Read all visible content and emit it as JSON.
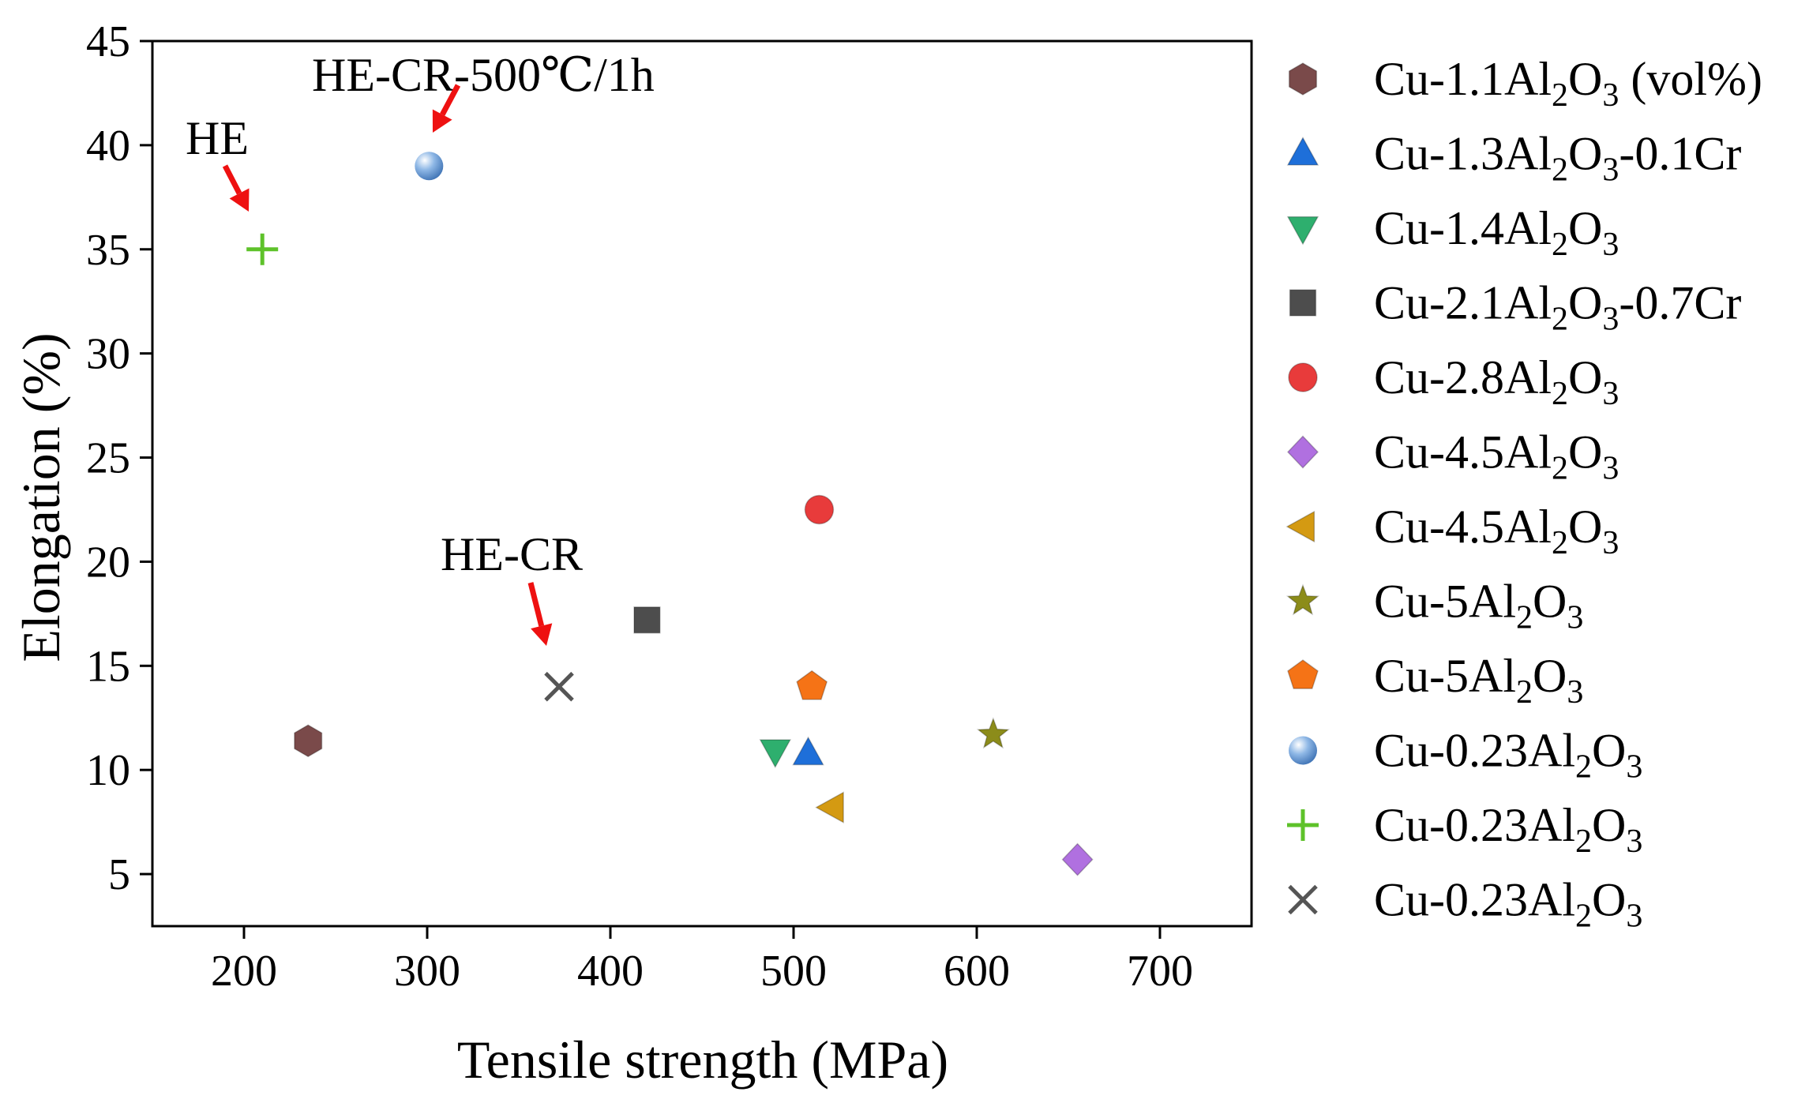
{
  "chart_data": {
    "type": "scatter",
    "title": "",
    "xlabel": "Tensile strength (MPa)",
    "ylabel": "Elongation (%)",
    "xlim": [
      150,
      750
    ],
    "ylim": [
      2.5,
      45
    ],
    "xticks": [
      200,
      300,
      400,
      500,
      600,
      700
    ],
    "yticks": [
      5,
      10,
      15,
      20,
      25,
      30,
      35,
      40,
      45
    ],
    "grid": false,
    "legend_position": "right",
    "series": [
      {
        "name": "Cu-1.1Al2O3 (vol%)",
        "label_base": "Cu-1.1Al",
        "label_mid": "O",
        "label_suffix": " (vol%)",
        "marker": "hexagon",
        "color": "#7a4a4a",
        "points": [
          {
            "x": 235,
            "y": 11.4
          }
        ]
      },
      {
        "name": "Cu-1.3Al2O3-0.1Cr",
        "label_base": "Cu-1.3Al",
        "label_mid": "O",
        "label_suffix": "-0.1Cr",
        "marker": "triangle-up",
        "color": "#1e6fd9",
        "points": [
          {
            "x": 508,
            "y": 10.8
          }
        ]
      },
      {
        "name": "Cu-1.4Al2O3",
        "label_base": "Cu-1.4Al",
        "label_mid": "O",
        "label_suffix": "",
        "marker": "triangle-down",
        "color": "#2eaf6e",
        "points": [
          {
            "x": 490,
            "y": 10.9
          }
        ]
      },
      {
        "name": "Cu-2.1Al2O3-0.7Cr",
        "label_base": "Cu-2.1Al",
        "label_mid": "O",
        "label_suffix": "-0.7Cr",
        "marker": "square",
        "color": "#4d4d4d",
        "points": [
          {
            "x": 420,
            "y": 17.2
          }
        ]
      },
      {
        "name": "Cu-2.8Al2O3",
        "label_base": "Cu-2.8Al",
        "label_mid": "O",
        "label_suffix": "",
        "marker": "circle",
        "color": "#e83b3b",
        "points": [
          {
            "x": 514,
            "y": 22.5
          }
        ]
      },
      {
        "name": "Cu-4.5Al2O3",
        "label_base": "Cu-4.5Al",
        "label_mid": "O",
        "label_suffix": "",
        "marker": "diamond",
        "color": "#b070e0",
        "points": [
          {
            "x": 655,
            "y": 5.7
          }
        ]
      },
      {
        "name": "Cu-4.5Al2O3",
        "label_base": "Cu-4.5Al",
        "label_mid": "O",
        "label_suffix": "",
        "marker": "triangle-left",
        "color": "#d49a12",
        "points": [
          {
            "x": 521,
            "y": 8.2
          }
        ]
      },
      {
        "name": "Cu-5Al2O3",
        "label_base": "Cu-5Al",
        "label_mid": "O",
        "label_suffix": "",
        "marker": "star",
        "color": "#8c8c1a",
        "points": [
          {
            "x": 609,
            "y": 11.7
          }
        ]
      },
      {
        "name": "Cu-5Al2O3",
        "label_base": "Cu-5Al",
        "label_mid": "O",
        "label_suffix": "",
        "marker": "pentagon",
        "color": "#f57316",
        "points": [
          {
            "x": 510,
            "y": 14.0
          }
        ]
      },
      {
        "name": "Cu-0.23Al2O3",
        "label_base": "Cu-0.23Al",
        "label_mid": "O",
        "label_suffix": "",
        "marker": "sphere",
        "color": "#5f97d6",
        "points": [
          {
            "x": 301,
            "y": 39.0
          }
        ]
      },
      {
        "name": "Cu-0.23Al2O3",
        "label_base": "Cu-0.23Al",
        "label_mid": "O",
        "label_suffix": "",
        "marker": "plus",
        "color": "#5ec22a",
        "points": [
          {
            "x": 210,
            "y": 35.0
          }
        ]
      },
      {
        "name": "Cu-0.23Al2O3",
        "label_base": "Cu-0.23Al",
        "label_mid": "O",
        "label_suffix": "",
        "marker": "cross",
        "color": "#555555",
        "points": [
          {
            "x": 372,
            "y": 14.0
          }
        ]
      }
    ],
    "annotations": [
      {
        "text": "HE-CR-500℃/1h",
        "target_x": 301,
        "target_y": 39.0
      },
      {
        "text": "HE",
        "target_x": 210,
        "target_y": 35.0
      },
      {
        "text": "HE-CR",
        "target_x": 372,
        "target_y": 14.0
      }
    ],
    "arrow_color": "#ee1111"
  }
}
